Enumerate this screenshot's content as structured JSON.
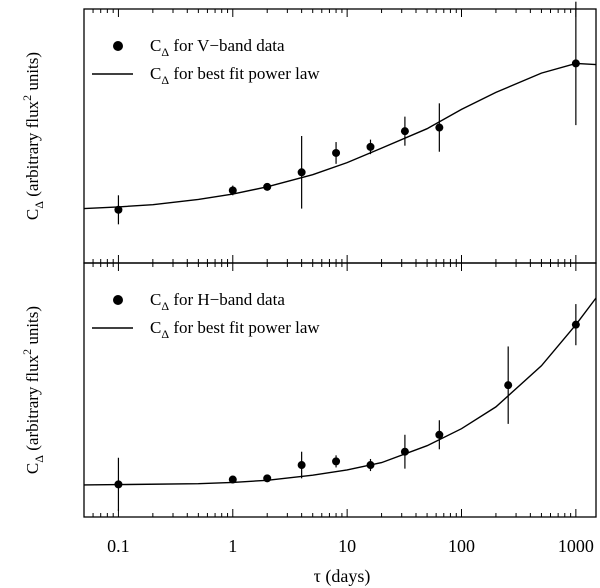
{
  "chart_data": [
    {
      "type": "scatter",
      "panel": "top",
      "ylabel": "C_Δ (arbitrary flux² units)",
      "ylabel_parts": {
        "base": "C",
        "sub": "Δ",
        "mid": " (arbitrary flux",
        "sup": "2",
        "end": " units)"
      },
      "legend": [
        {
          "kind": "points",
          "text": "C_Δ for V−band data",
          "base": "C",
          "sub": "Δ",
          "rest": " for V−band data"
        },
        {
          "kind": "line",
          "text": "C_Δ for best fit power law",
          "base": "C",
          "sub": "Δ",
          "rest": " for best fit power law"
        }
      ],
      "ylim": [
        0,
        1
      ],
      "points": [
        {
          "x": 0.1,
          "y": 0.195,
          "err_lo": 0.06,
          "err_hi": 0.06
        },
        {
          "x": 1,
          "y": 0.275,
          "err_lo": 0.02,
          "err_hi": 0.02
        },
        {
          "x": 2,
          "y": 0.29,
          "err_lo": 0.015,
          "err_hi": 0.015
        },
        {
          "x": 4,
          "y": 0.35,
          "err_lo": 0.15,
          "err_hi": 0.15
        },
        {
          "x": 8,
          "y": 0.43,
          "err_lo": 0.045,
          "err_hi": 0.045
        },
        {
          "x": 16,
          "y": 0.455,
          "err_lo": 0.03,
          "err_hi": 0.03
        },
        {
          "x": 32,
          "y": 0.52,
          "err_lo": 0.06,
          "err_hi": 0.06
        },
        {
          "x": 64,
          "y": 0.535,
          "err_lo": 0.1,
          "err_hi": 0.1
        },
        {
          "x": 1000,
          "y": 0.8,
          "err_lo": 0.255,
          "err_hi": 0.255
        }
      ],
      "fit": [
        {
          "x": 0.05,
          "y": 0.2
        },
        {
          "x": 0.1,
          "y": 0.207
        },
        {
          "x": 0.2,
          "y": 0.216
        },
        {
          "x": 0.5,
          "y": 0.238
        },
        {
          "x": 1,
          "y": 0.26
        },
        {
          "x": 2,
          "y": 0.29
        },
        {
          "x": 5,
          "y": 0.34
        },
        {
          "x": 10,
          "y": 0.39
        },
        {
          "x": 20,
          "y": 0.45
        },
        {
          "x": 50,
          "y": 0.53
        },
        {
          "x": 100,
          "y": 0.61
        },
        {
          "x": 200,
          "y": 0.68
        },
        {
          "x": 500,
          "y": 0.76
        },
        {
          "x": 1000,
          "y": 0.8
        },
        {
          "x": 1500,
          "y": 0.795
        }
      ]
    },
    {
      "type": "scatter",
      "panel": "bottom",
      "ylabel": "C_Δ (arbitrary flux² units)",
      "ylabel_parts": {
        "base": "C",
        "sub": "Δ",
        "mid": " (arbitrary flux",
        "sup": "2",
        "end": " units)"
      },
      "legend": [
        {
          "kind": "points",
          "text": "C_Δ for H−band data",
          "base": "C",
          "sub": "Δ",
          "rest": " for H−band data"
        },
        {
          "kind": "line",
          "text": "C_Δ for best fit power law",
          "base": "C",
          "sub": "Δ",
          "rest": " for best fit power law"
        }
      ],
      "ylim": [
        0,
        1
      ],
      "points": [
        {
          "x": 0.1,
          "y": 0.11,
          "err_lo": 0.11,
          "err_hi": 0.11
        },
        {
          "x": 1,
          "y": 0.13,
          "err_lo": 0.015,
          "err_hi": 0.015
        },
        {
          "x": 2,
          "y": 0.135,
          "err_lo": 0.015,
          "err_hi": 0.015
        },
        {
          "x": 4,
          "y": 0.19,
          "err_lo": 0.055,
          "err_hi": 0.055
        },
        {
          "x": 8,
          "y": 0.205,
          "err_lo": 0.025,
          "err_hi": 0.025
        },
        {
          "x": 16,
          "y": 0.19,
          "err_lo": 0.025,
          "err_hi": 0.025
        },
        {
          "x": 32,
          "y": 0.245,
          "err_lo": 0.07,
          "err_hi": 0.07
        },
        {
          "x": 64,
          "y": 0.315,
          "err_lo": 0.06,
          "err_hi": 0.06
        },
        {
          "x": 256,
          "y": 0.52,
          "err_lo": 0.16,
          "err_hi": 0.16
        },
        {
          "x": 1000,
          "y": 0.77,
          "err_lo": 0.085,
          "err_hi": 0.085
        }
      ],
      "fit": [
        {
          "x": 0.05,
          "y": 0.108
        },
        {
          "x": 0.1,
          "y": 0.109
        },
        {
          "x": 0.5,
          "y": 0.113
        },
        {
          "x": 1,
          "y": 0.118
        },
        {
          "x": 2,
          "y": 0.127
        },
        {
          "x": 5,
          "y": 0.148
        },
        {
          "x": 10,
          "y": 0.17
        },
        {
          "x": 20,
          "y": 0.2
        },
        {
          "x": 50,
          "y": 0.27
        },
        {
          "x": 100,
          "y": 0.34
        },
        {
          "x": 200,
          "y": 0.43
        },
        {
          "x": 500,
          "y": 0.6
        },
        {
          "x": 1000,
          "y": 0.77
        },
        {
          "x": 1500,
          "y": 0.88
        }
      ]
    }
  ],
  "xaxis": {
    "scale": "log",
    "xlim": [
      0.05,
      1500
    ],
    "xlabel": "τ (days)",
    "ticks": [
      {
        "value": 0.1,
        "label": "0.1"
      },
      {
        "value": 1,
        "label": "1"
      },
      {
        "value": 10,
        "label": "10"
      },
      {
        "value": 100,
        "label": "100"
      },
      {
        "value": 1000,
        "label": "1000"
      }
    ]
  },
  "colors": {
    "ink": "#000000",
    "background": "#ffffff"
  }
}
